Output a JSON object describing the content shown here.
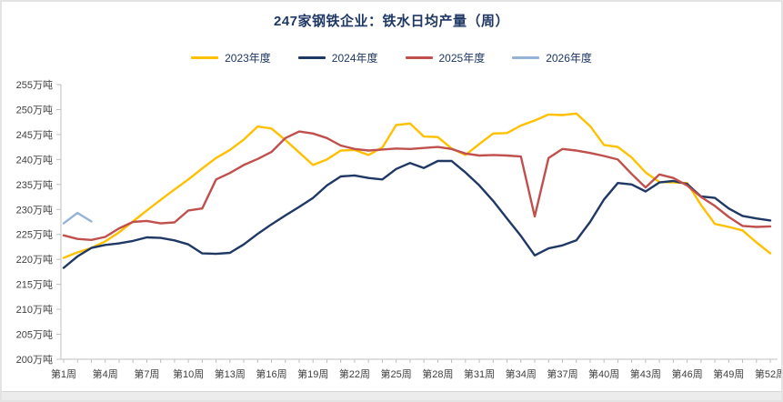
{
  "title": "247家钢铁企业：铁水日均产量（周）",
  "legend": {
    "items": [
      {
        "label": "2023年度",
        "color": "#FFC000"
      },
      {
        "label": "2024年度",
        "color": "#1F3864"
      },
      {
        "label": "2025年度",
        "color": "#C0504D"
      },
      {
        "label": "2026年度",
        "color": "#95B3D7"
      }
    ]
  },
  "y_axis": {
    "unit": "万吨",
    "labels": [
      "255万吨",
      "250万吨",
      "245万吨",
      "240万吨",
      "235万吨",
      "230万吨",
      "225万吨",
      "220万吨",
      "215万吨",
      "210万吨",
      "205万吨",
      "200万吨"
    ]
  },
  "x_axis": {
    "labels": [
      "第1周",
      "第4周",
      "第7周",
      "第10周",
      "第13周",
      "第16周",
      "第19周",
      "第22周",
      "第25周",
      "第28周",
      "第31周",
      "第34周",
      "第37周",
      "第40周",
      "第43周",
      "第46周",
      "第49周",
      "第52周"
    ]
  },
  "chart_data": {
    "type": "line",
    "title": "247家钢铁企业：铁水日均产量（周）",
    "x_unit": "week",
    "weeks": 52,
    "ylim": [
      200,
      255
    ],
    "y_tick_step": 5,
    "y_unit": "万吨",
    "grid": false,
    "legend_position": "top",
    "series": [
      {
        "name": "2023年度",
        "color": "#FFC000",
        "values": [
          220.3,
          221.4,
          222.3,
          223.6,
          225.4,
          227.6,
          229.8,
          231.9,
          234.0,
          236.0,
          238.2,
          240.3,
          241.9,
          244.0,
          246.6,
          246.2,
          243.9,
          241.4,
          238.9,
          240.0,
          241.8,
          241.9,
          240.9,
          242.4,
          246.9,
          247.2,
          244.6,
          244.5,
          242.2,
          240.9,
          243.1,
          245.2,
          245.3,
          246.8,
          247.8,
          249.0,
          248.9,
          249.2,
          246.7,
          242.9,
          242.5,
          240.4,
          237.4,
          235.5,
          235.4,
          235.3,
          230.9,
          227.1,
          226.5,
          225.8,
          223.4,
          221.2
        ]
      },
      {
        "name": "2024年度",
        "color": "#1F3864",
        "values": [
          218.3,
          220.6,
          222.3,
          222.9,
          223.2,
          223.7,
          224.4,
          224.3,
          223.8,
          223.0,
          221.2,
          221.1,
          221.3,
          223.0,
          225.1,
          227.0,
          228.8,
          230.5,
          232.3,
          234.8,
          236.6,
          236.8,
          236.3,
          236.0,
          238.1,
          239.3,
          238.3,
          239.7,
          239.7,
          237.4,
          234.8,
          231.7,
          228.2,
          224.7,
          220.8,
          222.2,
          222.8,
          223.8,
          227.5,
          232.0,
          235.3,
          235.0,
          233.6,
          235.4,
          235.7,
          235.1,
          232.6,
          232.3,
          230.2,
          228.7,
          228.2,
          227.8
        ]
      },
      {
        "name": "2025年度",
        "color": "#C0504D",
        "values": [
          224.8,
          224.1,
          223.9,
          224.5,
          226.2,
          227.5,
          227.7,
          227.2,
          227.4,
          229.8,
          230.2,
          236.0,
          237.3,
          238.9,
          240.1,
          241.5,
          244.3,
          245.6,
          245.2,
          244.3,
          242.8,
          242.1,
          241.8,
          242.0,
          242.2,
          242.1,
          242.3,
          242.5,
          242.1,
          241.2,
          240.8,
          240.9,
          240.8,
          240.6,
          228.6,
          240.3,
          242.1,
          241.8,
          241.3,
          240.7,
          240.0,
          237.1,
          234.4,
          237.0,
          236.3,
          234.8,
          232.5,
          230.7,
          228.5,
          226.7,
          226.5,
          226.6
        ]
      },
      {
        "name": "2026年度",
        "color": "#95B3D7",
        "values": [
          227.2,
          229.3,
          227.6
        ]
      }
    ]
  }
}
